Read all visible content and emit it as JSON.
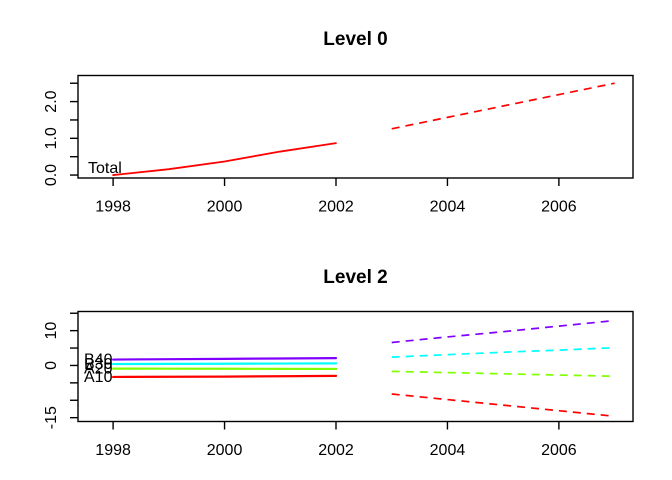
{
  "figure": {
    "background": "#ffffff",
    "axis_color": "#000000",
    "text_color": "#000000"
  },
  "chart_data": [
    {
      "id": "level-0",
      "type": "line",
      "title": "Level 0",
      "xlabel": "",
      "ylabel": "",
      "grid": false,
      "legend": "none",
      "xlim": [
        1997.37,
        2007.33
      ],
      "ylim": [
        -0.08,
        2.71
      ],
      "xticks": [
        1998,
        2000,
        2002,
        2004,
        2006
      ],
      "xtick_labels": [
        "1998",
        "2000",
        "2002",
        "2004",
        "2006"
      ],
      "yticks": [
        0,
        0.5,
        1,
        1.5,
        2,
        2.5
      ],
      "ytick_labels": [
        "0.0",
        "",
        "1.0",
        "",
        "2.0",
        ""
      ],
      "series": [
        {
          "name": "Total",
          "color": "#ff0000",
          "history": {
            "style": "solid",
            "x": [
              1998,
              1999,
              2000,
              2001,
              2002
            ],
            "y": [
              0.0,
              0.16,
              0.37,
              0.64,
              0.87
            ]
          },
          "forecast": {
            "style": "dashed",
            "x": [
              2003,
              2004,
              2005,
              2006,
              2007
            ],
            "y": [
              1.26,
              1.57,
              1.88,
              2.19,
              2.5
            ]
          }
        }
      ]
    },
    {
      "id": "level-2",
      "type": "line",
      "title": "Level 2",
      "xlabel": "",
      "ylabel": "",
      "grid": false,
      "legend": "none",
      "xlim": [
        1997.37,
        2007.33
      ],
      "ylim": [
        -16.1,
        15.5
      ],
      "xticks": [
        1998,
        2000,
        2002,
        2004,
        2006
      ],
      "xtick_labels": [
        "1998",
        "2000",
        "2002",
        "2004",
        "2006"
      ],
      "yticks": [
        15,
        10,
        5,
        0,
        -5,
        -10,
        -15
      ],
      "ytick_labels": [
        "",
        "10",
        "",
        "0",
        "",
        "",
        "-15"
      ],
      "series": [
        {
          "name": "B40",
          "color": "#8000ff",
          "history": {
            "style": "solid",
            "x": [
              1998,
              1999,
              2000,
              2001,
              2002
            ],
            "y": [
              1.7,
              1.8,
              1.9,
              2.0,
              2.1
            ]
          },
          "forecast": {
            "style": "dashed",
            "x": [
              2003,
              2004,
              2005,
              2006,
              2007
            ],
            "y": [
              6.6,
              8.2,
              9.7,
              11.3,
              12.9
            ]
          }
        },
        {
          "name": "B30",
          "color": "#00ffff",
          "history": {
            "style": "solid",
            "x": [
              1998,
              1999,
              2000,
              2001,
              2002
            ],
            "y": [
              0.4,
              0.45,
              0.5,
              0.55,
              0.6
            ]
          },
          "forecast": {
            "style": "dashed",
            "x": [
              2003,
              2004,
              2005,
              2006,
              2007
            ],
            "y": [
              2.4,
              3.1,
              3.8,
              4.4,
              5.1
            ]
          }
        },
        {
          "name": "A20",
          "color": "#80ff00",
          "history": {
            "style": "solid",
            "x": [
              1998,
              1999,
              2000,
              2001,
              2002
            ],
            "y": [
              -0.9,
              -0.93,
              -0.95,
              -0.98,
              -1.0
            ]
          },
          "forecast": {
            "style": "dashed",
            "x": [
              2003,
              2004,
              2005,
              2006,
              2007
            ],
            "y": [
              -1.7,
              -2.05,
              -2.4,
              -2.75,
              -3.1
            ]
          }
        },
        {
          "name": "A10",
          "color": "#ff0000",
          "history": {
            "style": "solid",
            "x": [
              1998,
              1999,
              2000,
              2001,
              2002
            ],
            "y": [
              -3.3,
              -3.25,
              -3.2,
              -3.1,
              -3.0
            ]
          },
          "forecast": {
            "style": "dashed",
            "x": [
              2003,
              2004,
              2005,
              2006,
              2007
            ],
            "y": [
              -8.2,
              -9.8,
              -11.4,
              -13.0,
              -14.6
            ]
          }
        }
      ]
    }
  ]
}
